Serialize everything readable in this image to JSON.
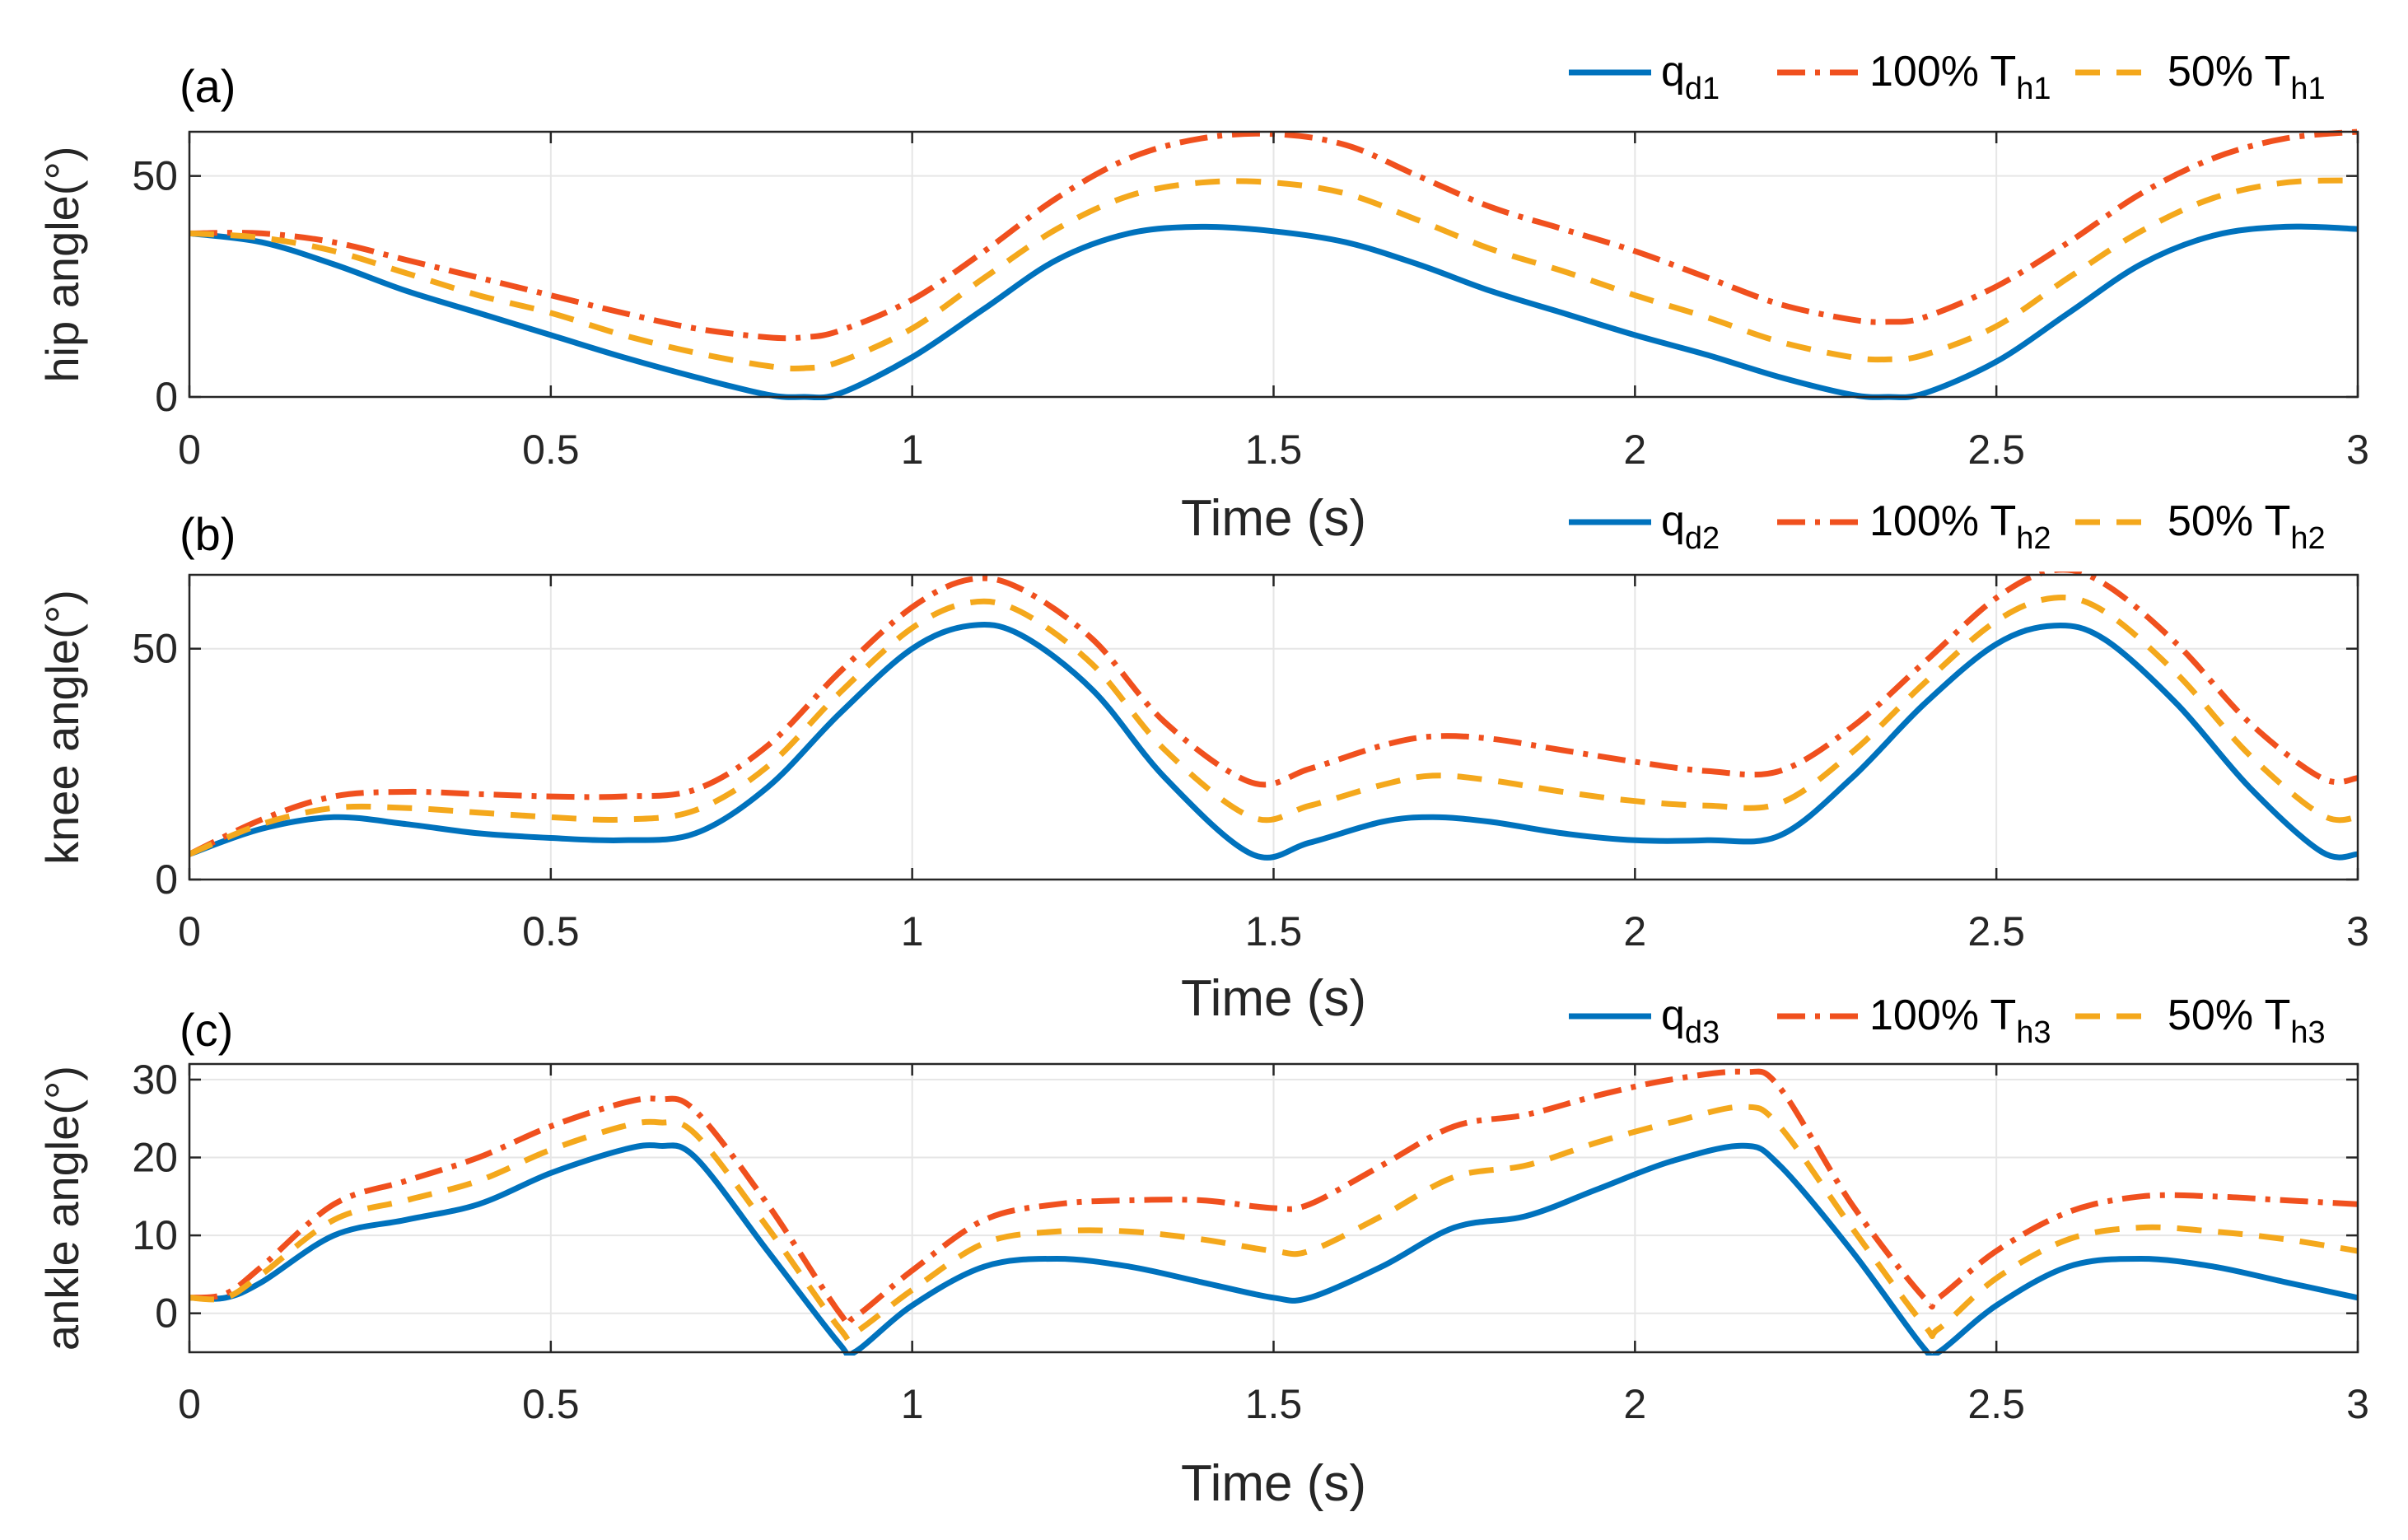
{
  "chart_data": [
    {
      "type": "line",
      "panel_label": "(a)",
      "xlabel": "Time (s)",
      "ylabel": "hip angle(°)",
      "xlim": [
        0,
        3
      ],
      "ylim": [
        0,
        60
      ],
      "grid": true,
      "xticks": [
        0,
        0.5,
        1,
        1.5,
        2,
        2.5,
        3
      ],
      "xtick_labels": [
        "0",
        "0.5",
        "1",
        "1.5",
        "2",
        "2.5",
        "3"
      ],
      "yticks": [
        0,
        50
      ],
      "ytick_labels": [
        "0",
        "50"
      ],
      "legend": [
        {
          "base": "q",
          "sub": "d1"
        },
        {
          "base": "100% T",
          "sub": "h1"
        },
        {
          "base": "50% T",
          "sub": "h1"
        }
      ],
      "x": [
        0,
        0.1,
        0.2,
        0.3,
        0.4,
        0.5,
        0.6,
        0.7,
        0.8,
        0.85,
        0.9,
        1.0,
        1.1,
        1.2,
        1.3,
        1.4,
        1.5,
        1.6,
        1.7,
        1.8,
        1.9,
        2.0,
        2.1,
        2.2,
        2.3,
        2.35,
        2.4,
        2.5,
        2.6,
        2.7,
        2.8,
        2.9,
        3.0
      ],
      "series": [
        {
          "name": "q_d1",
          "color": "#0072BD",
          "dash": "solid",
          "values": [
            37,
            35,
            30,
            24,
            19,
            14,
            9,
            4.5,
            0.5,
            0,
            0.8,
            9,
            20,
            31,
            37,
            38.5,
            37.5,
            35,
            30,
            24,
            19,
            14,
            9.5,
            4.5,
            0.5,
            0,
            0.8,
            8,
            19,
            30,
            36.5,
            38.5,
            38
          ]
        },
        {
          "name": "100% T_h1",
          "color": "#F0501E",
          "dash": "dashdot",
          "values": [
            37,
            37,
            35,
            31,
            27,
            23,
            19,
            15.5,
            13.5,
            13.5,
            15,
            22,
            33,
            45,
            54,
            58.5,
            59.5,
            57,
            50,
            43,
            38,
            33,
            27,
            21,
            17.5,
            17,
            18,
            25,
            35,
            46,
            54,
            58.5,
            60
          ]
        },
        {
          "name": "50% T_h1",
          "color": "#F4A81C",
          "dash": "dashed",
          "values": [
            37,
            36,
            33,
            28,
            23,
            19,
            14,
            10,
            7,
            6.5,
            8,
            15.5,
            27,
            38,
            45.5,
            48.5,
            48.5,
            46,
            40,
            33.5,
            28.5,
            23,
            18,
            12.5,
            9,
            8.5,
            9.5,
            16,
            27,
            37.5,
            45,
            48.5,
            49
          ]
        }
      ]
    },
    {
      "type": "line",
      "panel_label": "(b)",
      "xlabel": "Time (s)",
      "ylabel": "knee angle(°)",
      "xlim": [
        0,
        3
      ],
      "ylim": [
        0,
        66
      ],
      "grid": true,
      "xticks": [
        0,
        0.5,
        1,
        1.5,
        2,
        2.5,
        3
      ],
      "xtick_labels": [
        "0",
        "0.5",
        "1",
        "1.5",
        "2",
        "2.5",
        "3"
      ],
      "yticks": [
        0,
        50
      ],
      "ytick_labels": [
        "0",
        "50"
      ],
      "legend": [
        {
          "base": "q",
          "sub": "d2"
        },
        {
          "base": "100% T",
          "sub": "h2"
        },
        {
          "base": "50% T",
          "sub": "h2"
        }
      ],
      "x": [
        0,
        0.1,
        0.2,
        0.3,
        0.4,
        0.5,
        0.6,
        0.7,
        0.8,
        0.9,
        1.0,
        1.08,
        1.15,
        1.25,
        1.35,
        1.47,
        1.55,
        1.65,
        1.72,
        1.8,
        1.9,
        2.0,
        2.1,
        2.2,
        2.3,
        2.4,
        2.5,
        2.58,
        2.65,
        2.75,
        2.85,
        2.95,
        3.0
      ],
      "series": [
        {
          "name": "q_d2",
          "color": "#0072BD",
          "dash": "solid",
          "values": [
            5.5,
            11,
            13.5,
            12,
            10,
            9,
            8.5,
            10,
            20,
            36,
            50,
            55,
            53,
            41,
            22,
            5.5,
            8,
            12.5,
            13.5,
            12.5,
            10,
            8.5,
            8.5,
            9.5,
            22,
            38,
            51,
            55,
            52,
            38,
            20,
            6,
            5.5
          ]
        },
        {
          "name": "100% T_h2",
          "color": "#F0501E",
          "dash": "dashdot",
          "values": [
            5.5,
            13,
            18,
            19,
            18.5,
            18,
            18,
            19.5,
            29,
            45,
            59,
            65,
            63,
            52,
            34,
            21,
            24,
            29,
            31,
            30.5,
            28,
            25.5,
            23.5,
            23.5,
            33,
            47,
            61,
            67,
            64,
            51,
            34,
            22,
            22
          ]
        },
        {
          "name": "50% T_h2",
          "color": "#F4A81C",
          "dash": "dashed",
          "values": [
            5.5,
            12,
            15.5,
            15.5,
            14.5,
            13.5,
            13,
            15,
            24.5,
            40.5,
            54.5,
            60,
            58,
            46.5,
            28,
            13.5,
            16,
            20.5,
            22.5,
            21.5,
            19,
            17,
            16,
            16.5,
            27.5,
            42.5,
            56,
            61,
            58,
            44.5,
            27,
            14,
            13.5
          ]
        }
      ]
    },
    {
      "type": "line",
      "panel_label": "(c)",
      "xlabel": "Time (s)",
      "ylabel": "ankle angle(°)",
      "xlim": [
        0,
        3
      ],
      "ylim": [
        -5,
        32
      ],
      "grid": true,
      "xticks": [
        0,
        0.5,
        1,
        1.5,
        2,
        2.5,
        3
      ],
      "xtick_labels": [
        "0",
        "0.5",
        "1",
        "1.5",
        "2",
        "2.5",
        "3"
      ],
      "yticks": [
        0,
        10,
        20,
        30
      ],
      "ytick_labels": [
        "0",
        "10",
        "20",
        "30"
      ],
      "legend": [
        {
          "base": "q",
          "sub": "d3"
        },
        {
          "base": "100% T",
          "sub": "h3"
        },
        {
          "base": "50% T",
          "sub": "h3"
        }
      ],
      "x": [
        0,
        0.05,
        0.1,
        0.2,
        0.3,
        0.4,
        0.5,
        0.6,
        0.65,
        0.7,
        0.8,
        0.9,
        0.92,
        1.0,
        1.1,
        1.2,
        1.3,
        1.4,
        1.5,
        1.55,
        1.65,
        1.75,
        1.85,
        1.95,
        2.05,
        2.15,
        2.2,
        2.3,
        2.4,
        2.42,
        2.5,
        2.6,
        2.7,
        2.8,
        2.9,
        3.0
      ],
      "series": [
        {
          "name": "q_d3",
          "color": "#0072BD",
          "dash": "solid",
          "values": [
            2,
            2,
            4,
            10,
            12,
            14,
            18,
            21,
            21.5,
            20,
            8,
            -4,
            -5,
            1,
            6,
            7,
            6,
            4,
            2,
            2,
            6,
            11,
            12.5,
            16,
            19.5,
            21.5,
            19,
            8,
            -4.5,
            -5,
            1,
            6,
            7,
            6,
            4,
            2
          ]
        },
        {
          "name": "100% T_h3",
          "color": "#F0501E",
          "dash": "dashdot",
          "values": [
            2,
            2.5,
            6,
            14,
            17,
            20,
            24,
            27,
            27.5,
            26,
            14,
            0,
            -0.5,
            5.5,
            12,
            14,
            14.5,
            14.5,
            13.5,
            14,
            19,
            24,
            25.5,
            28,
            30,
            31,
            29,
            14,
            2,
            2,
            8,
            13,
            15,
            15,
            14.5,
            14
          ]
        },
        {
          "name": "50% T_h3",
          "color": "#F4A81C",
          "dash": "dashed",
          "values": [
            2,
            2,
            5,
            12,
            14.5,
            17,
            21,
            24,
            24.5,
            23,
            11,
            -2,
            -2.5,
            3,
            9,
            10.5,
            10.5,
            9.5,
            8,
            8,
            12.5,
            17.5,
            19,
            22,
            24.5,
            26.5,
            24,
            11,
            -1.5,
            -2,
            4.5,
            9.5,
            11,
            10.5,
            9.5,
            8
          ]
        }
      ]
    }
  ]
}
